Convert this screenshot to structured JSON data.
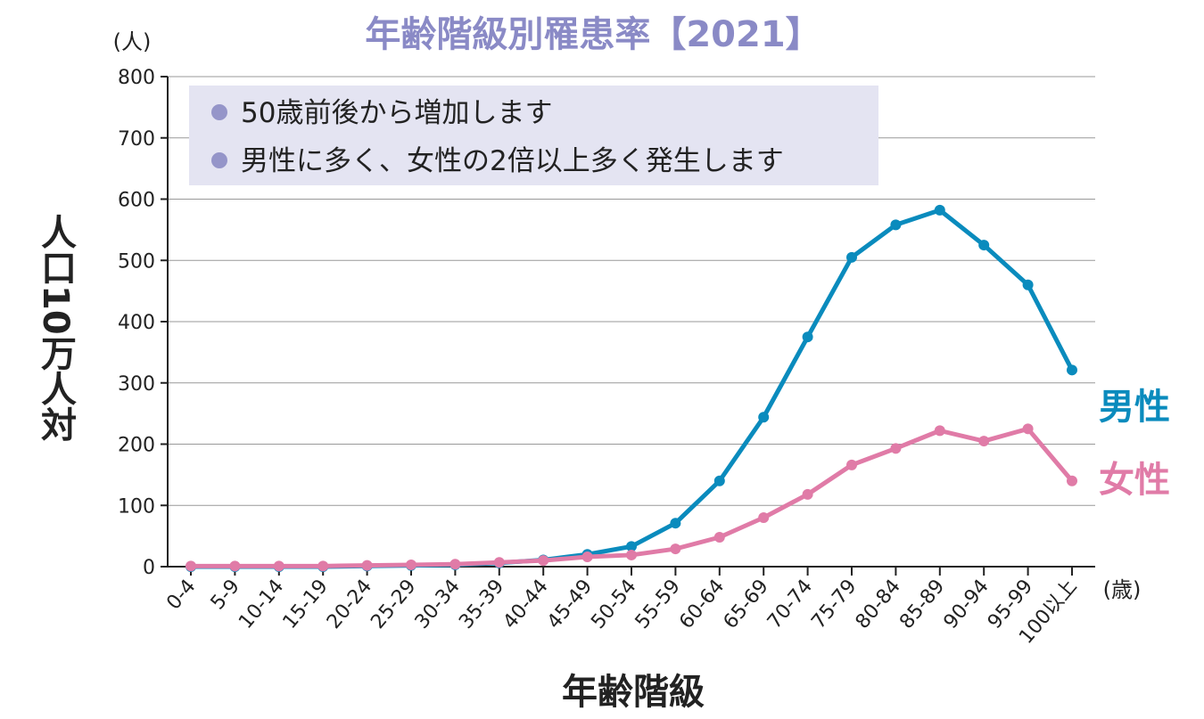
{
  "chart_data": {
    "type": "line",
    "title": "年齢階級別罹患率【2021】",
    "ylabel": "人口10万人対",
    "yunit": "(人)",
    "xlabel": "年齢階級",
    "xunit": "(歳)",
    "ylim": [
      0,
      800
    ],
    "yticks": [
      0,
      100,
      200,
      300,
      400,
      500,
      600,
      700,
      800
    ],
    "grid": true,
    "categories": [
      "0-4",
      "5-9",
      "10-14",
      "15-19",
      "20-24",
      "25-29",
      "30-34",
      "35-39",
      "40-44",
      "45-49",
      "50-54",
      "55-59",
      "60-64",
      "65-69",
      "70-74",
      "75-79",
      "80-84",
      "85-89",
      "90-94",
      "95-99",
      "100以上"
    ],
    "series": [
      {
        "name": "男性",
        "color": "#0a8bbd",
        "values": [
          0,
          0,
          0,
          0,
          1,
          2,
          3,
          6,
          11,
          20,
          33,
          71,
          140,
          244,
          375,
          505,
          558,
          582,
          525,
          460,
          321
        ]
      },
      {
        "name": "女性",
        "color": "#e07ba7",
        "values": [
          1,
          1,
          1,
          1,
          2,
          3,
          4,
          7,
          10,
          16,
          19,
          29,
          48,
          80,
          118,
          166,
          193,
          222,
          205,
          225,
          140
        ]
      }
    ],
    "notes": [
      "50歳前後から増加します",
      "男性に多く、女性の2倍以上多く発生します"
    ],
    "colors": {
      "title": "#8a8ac6",
      "note_box": "#e4e4f2",
      "bullet": "#9595c9",
      "grid": "#999999"
    }
  }
}
